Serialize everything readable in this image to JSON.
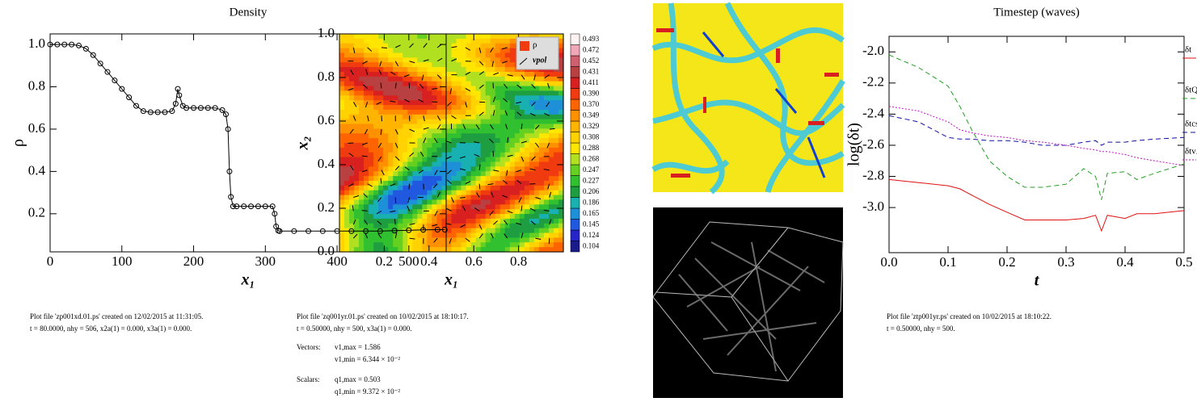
{
  "chart_data": [
    {
      "type": "line",
      "title": "Density",
      "xlabel": "x₁",
      "ylabel": "ρ",
      "markers": true,
      "color": "#000000",
      "x": [
        0,
        10,
        20,
        30,
        40,
        50,
        60,
        70,
        80,
        90,
        100,
        110,
        120,
        130,
        140,
        150,
        160,
        170,
        175,
        178,
        180,
        185,
        190,
        200,
        210,
        220,
        230,
        240,
        245,
        248,
        250,
        252,
        255,
        260,
        270,
        280,
        290,
        300,
        310,
        313,
        315,
        318,
        320,
        340,
        360,
        380,
        400,
        420,
        440,
        460,
        480,
        500,
        520,
        540,
        550
      ],
      "values": [
        1.0,
        1.0,
        1.0,
        1.0,
        0.995,
        0.98,
        0.95,
        0.91,
        0.87,
        0.83,
        0.79,
        0.75,
        0.71,
        0.685,
        0.68,
        0.68,
        0.68,
        0.685,
        0.72,
        0.79,
        0.76,
        0.71,
        0.7,
        0.7,
        0.7,
        0.7,
        0.7,
        0.69,
        0.67,
        0.6,
        0.4,
        0.28,
        0.235,
        0.235,
        0.235,
        0.235,
        0.235,
        0.235,
        0.235,
        0.2,
        0.14,
        0.12,
        0.118,
        0.118,
        0.118,
        0.118,
        0.118,
        0.118,
        0.118,
        0.118,
        0.12,
        0.122,
        0.124,
        0.125,
        0.125
      ],
      "xlim": [
        0,
        552
      ],
      "xticks": [
        0,
        100,
        200,
        300,
        400,
        500
      ],
      "ylim": [
        0.02,
        1.05
      ],
      "yticks": [
        0.2,
        0.4,
        0.6,
        0.8,
        {
          "value": 1,
          "label": "1.0"
        }
      ],
      "notes": [
        "Plot file 'zp001xd.01.ps' created on 12/02/2015 at 11:31:05.",
        "t = 80.0000, nhy = 506, x2a(1) = 0.000, x3a(1) = 0.000."
      ]
    },
    {
      "type": "contour",
      "xlabel": "x₁",
      "ylabel": "x₂",
      "xlim": [
        0,
        1
      ],
      "xticks": [
        0.2,
        0.4,
        0.6,
        0.8
      ],
      "ylim": [
        0,
        1
      ],
      "yticks": [
        {
          "value": 0,
          "label": "0.0"
        },
        0.2,
        0.4,
        0.6,
        0.8,
        {
          "value": 1,
          "label": "1.0"
        }
      ],
      "legend": [
        "ρ",
        "vpol"
      ],
      "levels": [
        0.104,
        0.124,
        0.145,
        0.165,
        0.186,
        0.206,
        0.227,
        0.247,
        0.268,
        0.288,
        0.308,
        0.329,
        0.349,
        {
          "value": 0.37,
          "label": "0.370"
        },
        {
          "value": 0.39,
          "label": "0.390"
        },
        0.411,
        0.431,
        0.452,
        0.472,
        0.493
      ],
      "colors": [
        "#1a1a8c",
        "#2424c8",
        "#2058e0",
        "#1e90d8",
        "#18b0b0",
        "#1e9e40",
        "#30c030",
        "#66d020",
        "#b0e020",
        "#ffe600",
        "#ffd200",
        "#ffb400",
        "#ff9000",
        "#ff6400",
        "#f03a10",
        "#d82020",
        "#b84040",
        "#d06070",
        "#f0a8b8",
        "#fff2f2"
      ],
      "notes": [
        "Plot file 'zq001yr.01.ps' created on 10/02/2015 at 18:10:17.",
        "t = 0.50000, nhy = 500, x3a(1) = 0.000.",
        "Vectors:",
        "v1,max = 1.586",
        "v1,min = 6.344 × 10⁻²",
        "Scalars:",
        "q1,max = 0.503",
        "q1,min = 9.372 × 10⁻²"
      ]
    },
    {
      "type": "line",
      "title": "Timestep (waves)",
      "xlabel": "t",
      "ylabel": "log(δt)",
      "x": [
        0,
        0.05,
        0.1,
        0.12,
        0.14,
        0.17,
        0.2,
        0.23,
        0.26,
        0.3,
        0.33,
        0.35,
        0.36,
        0.37,
        0.4,
        0.42,
        0.45,
        0.5
      ],
      "series": [
        {
          "name": "δt",
          "color": "#e01010",
          "style": "solid",
          "values": [
            -2.82,
            -2.84,
            -2.86,
            -2.88,
            -2.92,
            -2.98,
            -3.03,
            -3.08,
            -3.08,
            -3.08,
            -3.07,
            -3.05,
            -3.15,
            -3.05,
            -3.07,
            -3.04,
            -3.04,
            -3.02
          ]
        },
        {
          "name": "δtQ",
          "color": "#20a020",
          "style": "dashed",
          "values": [
            -2.02,
            -2.1,
            -2.22,
            -2.35,
            -2.5,
            -2.7,
            -2.8,
            -2.87,
            -2.87,
            -2.85,
            -2.75,
            -2.8,
            -2.95,
            -2.78,
            -2.77,
            -2.82,
            -2.78,
            -2.72
          ]
        },
        {
          "name": "δtcs",
          "color": "#1010a0",
          "style": "dashed",
          "values": [
            -2.41,
            -2.45,
            -2.55,
            -2.56,
            -2.56,
            -2.57,
            -2.57,
            -2.58,
            -2.6,
            -2.6,
            -2.58,
            -2.57,
            -2.6,
            -2.58,
            -2.58,
            -2.57,
            -2.56,
            -2.55
          ]
        },
        {
          "name": "δtvA",
          "color": "#c010c0",
          "style": "dotted",
          "values": [
            -2.35,
            -2.38,
            -2.45,
            -2.5,
            -2.52,
            -2.54,
            -2.55,
            -2.57,
            -2.58,
            -2.6,
            -2.62,
            -2.63,
            -2.64,
            -2.64,
            -2.66,
            -2.68,
            -2.7,
            -2.73
          ]
        }
      ],
      "xlim": [
        0,
        0.5
      ],
      "xticks": [
        {
          "value": 0,
          "label": "0.0"
        },
        0.1,
        0.2,
        0.3,
        0.4,
        0.5
      ],
      "ylim": [
        -3.29,
        -1.9
      ],
      "yticks": [
        {
          "value": -3,
          "label": "-3.0"
        },
        -2.8,
        -2.6,
        -2.4,
        -2.2,
        {
          "value": -2,
          "label": "-2.0"
        }
      ],
      "notes": [
        "Plot file 'ztp001yr.ps' created on 10/02/2015 at 18:10:22.",
        "t = 0.50000, nhy = 500."
      ]
    }
  ]
}
